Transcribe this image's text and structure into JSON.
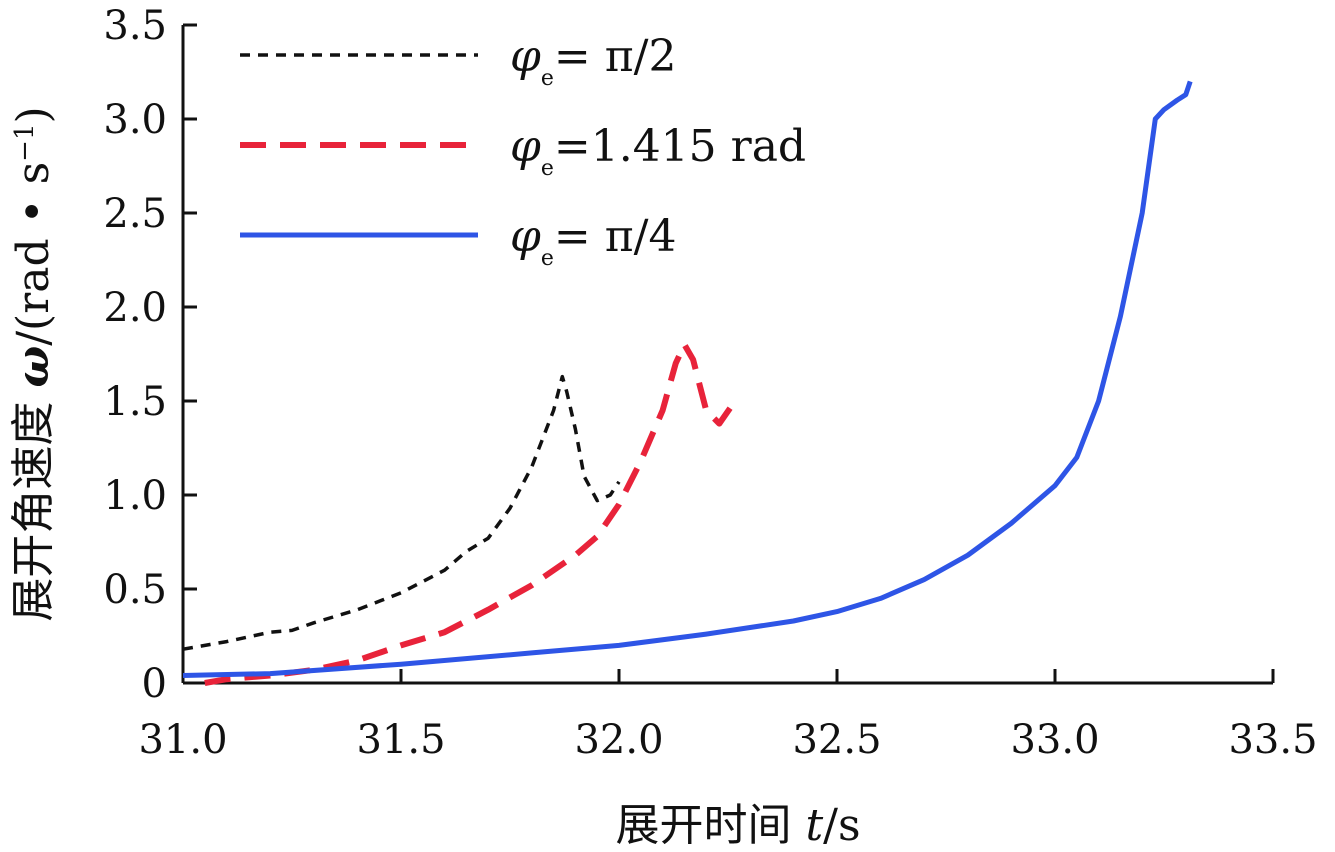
{
  "chart_data": {
    "type": "line",
    "xlabel_prefix": "展开时间 ",
    "xlabel_var": "t",
    "xlabel_unit": "/s",
    "ylabel_prefix": "展开角速度 ",
    "ylabel_var": "ω",
    "ylabel_unit_pre": "/(rad • s",
    "ylabel_unit_sup": "−1",
    "ylabel_unit_post": ")",
    "xlim": [
      31.0,
      33.5
    ],
    "ylim": [
      0,
      3.5
    ],
    "xticks": [
      "31.0",
      "31.5",
      "32.0",
      "32.5",
      "33.0",
      "33.5"
    ],
    "yticks": [
      "0",
      "0.5",
      "1.0",
      "1.5",
      "2.0",
      "2.5",
      "3.0",
      "3.5"
    ],
    "grid": false,
    "legend_position": "top-left",
    "series": [
      {
        "name_main": "φ",
        "name_sub": "e",
        "name_rest": "= π/2",
        "color": "#111111",
        "style": "short-dash",
        "x": [
          31.0,
          31.1,
          31.2,
          31.25,
          31.3,
          31.4,
          31.5,
          31.6,
          31.65,
          31.7,
          31.75,
          31.8,
          31.85,
          31.87,
          31.88,
          31.9,
          31.92,
          31.95,
          31.98,
          32.0
        ],
        "y": [
          0.18,
          0.22,
          0.27,
          0.28,
          0.32,
          0.39,
          0.48,
          0.6,
          0.7,
          0.77,
          0.93,
          1.15,
          1.45,
          1.63,
          1.55,
          1.35,
          1.1,
          0.97,
          1.0,
          1.07
        ]
      },
      {
        "name_main": "φ",
        "name_sub": "e",
        "name_rest": "=1.415 rad",
        "color": "#e8233a",
        "style": "long-dash",
        "x": [
          31.05,
          31.1,
          31.2,
          31.3,
          31.4,
          31.5,
          31.6,
          31.7,
          31.8,
          31.9,
          31.95,
          32.0,
          32.05,
          32.1,
          32.13,
          32.15,
          32.17,
          32.2,
          32.23,
          32.26
        ],
        "y": [
          0.0,
          0.02,
          0.04,
          0.07,
          0.12,
          0.2,
          0.27,
          0.39,
          0.52,
          0.68,
          0.78,
          0.95,
          1.18,
          1.45,
          1.7,
          1.8,
          1.72,
          1.45,
          1.38,
          1.48
        ]
      },
      {
        "name_main": "φ",
        "name_sub": "e",
        "name_rest": "= π/4",
        "color": "#2e55e6",
        "style": "solid",
        "x": [
          31.0,
          31.2,
          31.5,
          31.8,
          32.0,
          32.2,
          32.4,
          32.5,
          32.6,
          32.7,
          32.8,
          32.9,
          33.0,
          33.05,
          33.1,
          33.15,
          33.2,
          33.23,
          33.25,
          33.28,
          33.3,
          33.31
        ],
        "y": [
          0.04,
          0.05,
          0.1,
          0.16,
          0.2,
          0.26,
          0.33,
          0.38,
          0.45,
          0.55,
          0.68,
          0.85,
          1.05,
          1.2,
          1.5,
          1.95,
          2.5,
          3.0,
          3.05,
          3.1,
          3.13,
          3.2
        ]
      }
    ]
  }
}
